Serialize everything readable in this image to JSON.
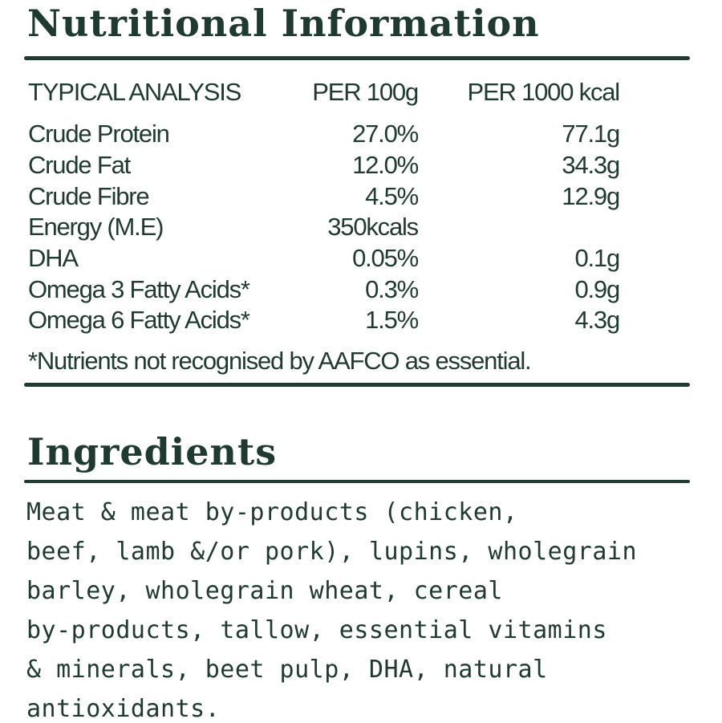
{
  "colors": {
    "ink": "#1f3a30",
    "background": "#ffffff"
  },
  "nutrition": {
    "title": "Nutritional Information",
    "headers": [
      "TYPICAL ANALYSIS",
      "PER 100g",
      "PER 1000 kcal"
    ],
    "rows": [
      {
        "label": "Crude Protein",
        "per100g": "27.0%",
        "per1000kcal": "77.1g"
      },
      {
        "label": "Crude Fat",
        "per100g": "12.0%",
        "per1000kcal": "34.3g"
      },
      {
        "label": "Crude Fibre",
        "per100g": "4.5%",
        "per1000kcal": "12.9g"
      },
      {
        "label": "Energy (M.E)",
        "per100g": "350kcals",
        "per1000kcal": ""
      },
      {
        "label": "DHA",
        "per100g": "0.05%",
        "per1000kcal": "0.1g"
      },
      {
        "label": "Omega 3 Fatty Acids*",
        "per100g": "0.3%",
        "per1000kcal": "0.9g"
      },
      {
        "label": "Omega 6 Fatty Acids*",
        "per100g": "1.5%",
        "per1000kcal": "4.3g"
      }
    ],
    "footnote": "*Nutrients not recognised by AAFCO as essential."
  },
  "ingredients": {
    "title": "Ingredients",
    "lines": [
      "Meat & meat by-products (chicken,",
      "beef, lamb &/or pork), lupins, wholegrain",
      "barley, wholegrain wheat, cereal",
      "by-products, tallow, essential vitamins",
      "& minerals, beet pulp, DHA, natural",
      "antioxidants."
    ]
  }
}
